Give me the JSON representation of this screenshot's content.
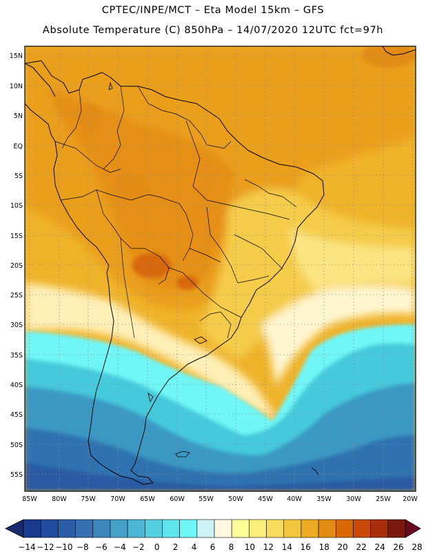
{
  "header": {
    "line1": "CPTEC/INPE/MCT  –   Eta Model 15km  –  GFS",
    "line2": "Absolute Temperature (C) 850hPa – 14/07/2020 12UTC fct=97h"
  },
  "map": {
    "region": "South America",
    "lat_labels": [
      "15N",
      "10N",
      "5N",
      "EQ",
      "5S",
      "10S",
      "15S",
      "20S",
      "25S",
      "30S",
      "35S",
      "40S",
      "45S",
      "50S",
      "55S"
    ],
    "lon_labels": [
      "85W",
      "80W",
      "75W",
      "70W",
      "65W",
      "60W",
      "55W",
      "50W",
      "45W",
      "40W",
      "35W",
      "30W",
      "25W",
      "20W"
    ]
  },
  "colorbar": {
    "labels": [
      "-14",
      "-12",
      "-10",
      "-8",
      "-6",
      "-4",
      "-2",
      "0",
      "2",
      "4",
      "6",
      "8",
      "10",
      "12",
      "14",
      "16",
      "18",
      "20",
      "22",
      "24",
      "26",
      "28"
    ],
    "colors": [
      "#1a3a8e",
      "#234b9d",
      "#2c5ea8",
      "#3571b1",
      "#3d86bb",
      "#45a0c8",
      "#4cb6d4",
      "#55cfe0",
      "#5ee4eb",
      "#6ff6f6",
      "#cdf3f7",
      "#fff8e0",
      "#ffff99",
      "#fcee7a",
      "#f8dc5e",
      "#f1c53e",
      "#ecab22",
      "#e28c12",
      "#d86808",
      "#c94a06",
      "#a92e0a",
      "#7a1a0e"
    ]
  }
}
